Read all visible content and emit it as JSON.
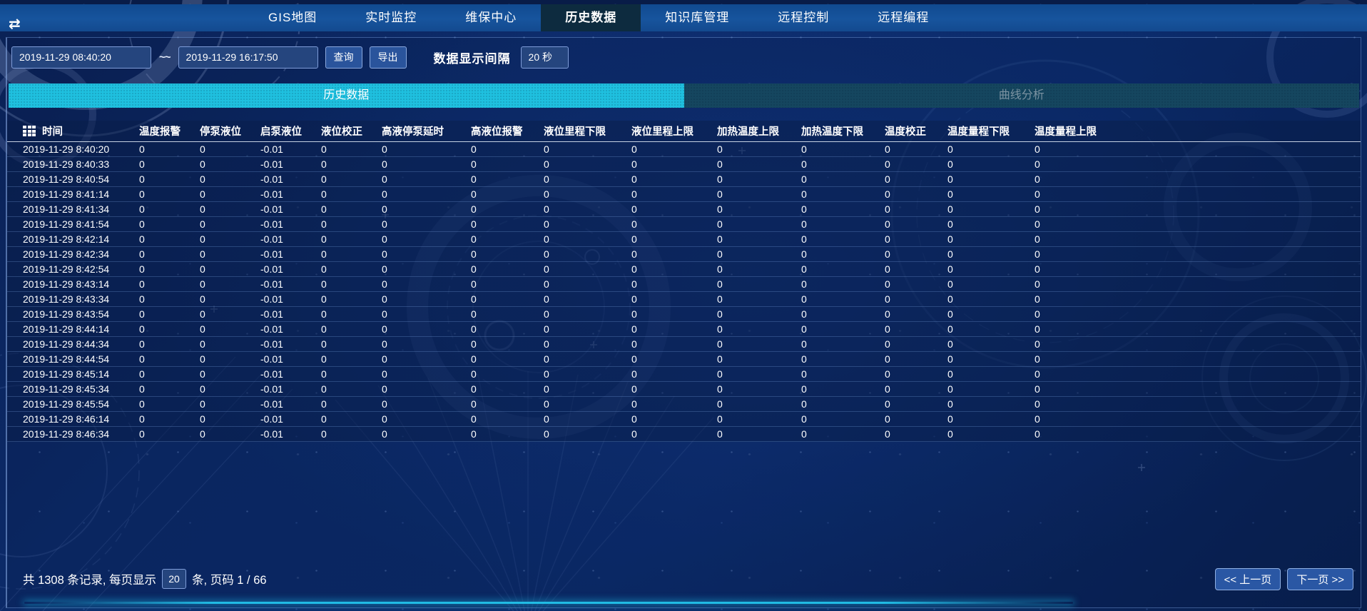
{
  "nav": {
    "menu_icon_glyph": "⇄",
    "tabs": [
      {
        "label": "GIS地图",
        "active": false
      },
      {
        "label": "实时监控",
        "active": false
      },
      {
        "label": "维保中心",
        "active": false
      },
      {
        "label": "历史数据",
        "active": true
      },
      {
        "label": "知识库管理",
        "active": false
      },
      {
        "label": "远程控制",
        "active": false
      },
      {
        "label": "远程编程",
        "active": false
      }
    ]
  },
  "toolbar": {
    "start_time": "2019-11-29 08:40:20",
    "range_separator": "~~",
    "end_time": "2019-11-29 16:17:50",
    "query_label": "查询",
    "export_label": "导出",
    "interval_label": "数据显示间隔",
    "interval_value": "20 秒"
  },
  "subtabs": [
    {
      "label": "历史数据",
      "active": true
    },
    {
      "label": "曲线分析",
      "active": false
    }
  ],
  "table": {
    "headers": [
      "时间",
      "温度报警",
      "停泵液位",
      "启泵液位",
      "液位校正",
      "高液停泵延时",
      "高液位报警",
      "液位里程下限",
      "液位里程上限",
      "加热温度上限",
      "加热温度下限",
      "温度校正",
      "温度量程下限",
      "温度量程上限"
    ],
    "rows": [
      [
        "2019-11-29 8:40:20",
        "0",
        "0",
        "-0.01",
        "0",
        "0",
        "0",
        "0",
        "0",
        "0",
        "0",
        "0",
        "0",
        "0"
      ],
      [
        "2019-11-29 8:40:33",
        "0",
        "0",
        "-0.01",
        "0",
        "0",
        "0",
        "0",
        "0",
        "0",
        "0",
        "0",
        "0",
        "0"
      ],
      [
        "2019-11-29 8:40:54",
        "0",
        "0",
        "-0.01",
        "0",
        "0",
        "0",
        "0",
        "0",
        "0",
        "0",
        "0",
        "0",
        "0"
      ],
      [
        "2019-11-29 8:41:14",
        "0",
        "0",
        "-0.01",
        "0",
        "0",
        "0",
        "0",
        "0",
        "0",
        "0",
        "0",
        "0",
        "0"
      ],
      [
        "2019-11-29 8:41:34",
        "0",
        "0",
        "-0.01",
        "0",
        "0",
        "0",
        "0",
        "0",
        "0",
        "0",
        "0",
        "0",
        "0"
      ],
      [
        "2019-11-29 8:41:54",
        "0",
        "0",
        "-0.01",
        "0",
        "0",
        "0",
        "0",
        "0",
        "0",
        "0",
        "0",
        "0",
        "0"
      ],
      [
        "2019-11-29 8:42:14",
        "0",
        "0",
        "-0.01",
        "0",
        "0",
        "0",
        "0",
        "0",
        "0",
        "0",
        "0",
        "0",
        "0"
      ],
      [
        "2019-11-29 8:42:34",
        "0",
        "0",
        "-0.01",
        "0",
        "0",
        "0",
        "0",
        "0",
        "0",
        "0",
        "0",
        "0",
        "0"
      ],
      [
        "2019-11-29 8:42:54",
        "0",
        "0",
        "-0.01",
        "0",
        "0",
        "0",
        "0",
        "0",
        "0",
        "0",
        "0",
        "0",
        "0"
      ],
      [
        "2019-11-29 8:43:14",
        "0",
        "0",
        "-0.01",
        "0",
        "0",
        "0",
        "0",
        "0",
        "0",
        "0",
        "0",
        "0",
        "0"
      ],
      [
        "2019-11-29 8:43:34",
        "0",
        "0",
        "-0.01",
        "0",
        "0",
        "0",
        "0",
        "0",
        "0",
        "0",
        "0",
        "0",
        "0"
      ],
      [
        "2019-11-29 8:43:54",
        "0",
        "0",
        "-0.01",
        "0",
        "0",
        "0",
        "0",
        "0",
        "0",
        "0",
        "0",
        "0",
        "0"
      ],
      [
        "2019-11-29 8:44:14",
        "0",
        "0",
        "-0.01",
        "0",
        "0",
        "0",
        "0",
        "0",
        "0",
        "0",
        "0",
        "0",
        "0"
      ],
      [
        "2019-11-29 8:44:34",
        "0",
        "0",
        "-0.01",
        "0",
        "0",
        "0",
        "0",
        "0",
        "0",
        "0",
        "0",
        "0",
        "0"
      ],
      [
        "2019-11-29 8:44:54",
        "0",
        "0",
        "-0.01",
        "0",
        "0",
        "0",
        "0",
        "0",
        "0",
        "0",
        "0",
        "0",
        "0"
      ],
      [
        "2019-11-29 8:45:14",
        "0",
        "0",
        "-0.01",
        "0",
        "0",
        "0",
        "0",
        "0",
        "0",
        "0",
        "0",
        "0",
        "0"
      ],
      [
        "2019-11-29 8:45:34",
        "0",
        "0",
        "-0.01",
        "0",
        "0",
        "0",
        "0",
        "0",
        "0",
        "0",
        "0",
        "0",
        "0"
      ],
      [
        "2019-11-29 8:45:54",
        "0",
        "0",
        "-0.01",
        "0",
        "0",
        "0",
        "0",
        "0",
        "0",
        "0",
        "0",
        "0",
        "0"
      ],
      [
        "2019-11-29 8:46:14",
        "0",
        "0",
        "-0.01",
        "0",
        "0",
        "0",
        "0",
        "0",
        "0",
        "0",
        "0",
        "0",
        "0"
      ],
      [
        "2019-11-29 8:46:34",
        "0",
        "0",
        "-0.01",
        "0",
        "0",
        "0",
        "0",
        "0",
        "0",
        "0",
        "0",
        "0",
        "0"
      ]
    ]
  },
  "footer": {
    "records_text_before": "共 1308 条记录, 每页显示",
    "page_size": "20",
    "records_text_after": "条, 页码 1 / 66",
    "prev_label": "<< 上一页",
    "next_label": "下一页 >>"
  },
  "colors": {
    "accent_cyan": "#1fc0df",
    "nav_blue": "#17549d",
    "active_nav_tab": "#0d2b3f",
    "inactive_subtab": "#15465f",
    "input_bg": "#25457e",
    "input_border": "#7e9cd8"
  }
}
